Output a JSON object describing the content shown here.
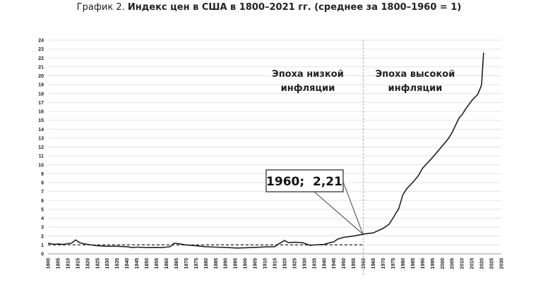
{
  "title": {
    "prefix": "График 2.",
    "main": "Индекс цен в США в 1800–2021 гг. (среднее за 1800–1960 = 1)"
  },
  "chart_data": {
    "type": "line",
    "title": "Индекс цен в США в 1800–2021 гг. (среднее за 1800–1960 = 1)",
    "xlim": [
      1800,
      2030
    ],
    "ylim": [
      0,
      24
    ],
    "x_ticks": [
      1800,
      1805,
      1810,
      1815,
      1820,
      1825,
      1830,
      1835,
      1840,
      1845,
      1850,
      1855,
      1860,
      1865,
      1870,
      1875,
      1880,
      1885,
      1890,
      1895,
      1900,
      1905,
      1910,
      1915,
      1920,
      1925,
      1930,
      1935,
      1940,
      1945,
      1950,
      1955,
      1960,
      1965,
      1970,
      1975,
      1980,
      1985,
      1990,
      1995,
      2000,
      2005,
      2010,
      2015,
      2020,
      2025,
      2030
    ],
    "y_ticks": [
      0,
      1,
      2,
      3,
      4,
      5,
      6,
      7,
      8,
      9,
      10,
      11,
      12,
      13,
      14,
      15,
      16,
      17,
      18,
      19,
      20,
      21,
      22,
      23,
      24
    ],
    "grid": "horizontal",
    "series": [
      {
        "color": "#222222",
        "x": [
          1800,
          1803,
          1805,
          1808,
          1810,
          1812,
          1814,
          1816,
          1818,
          1820,
          1825,
          1830,
          1835,
          1840,
          1843,
          1845,
          1850,
          1855,
          1858,
          1860,
          1862,
          1864,
          1866,
          1870,
          1875,
          1880,
          1885,
          1890,
          1896,
          1900,
          1905,
          1910,
          1915,
          1917,
          1920,
          1922,
          1925,
          1929,
          1933,
          1935,
          1940,
          1943,
          1945,
          1947,
          1950,
          1955,
          1960,
          1965,
          1970,
          1973,
          1975,
          1978,
          1980,
          1982,
          1985,
          1988,
          1990,
          1995,
          2000,
          2003,
          2005,
          2008,
          2009,
          2010,
          2012,
          2015,
          2018,
          2019,
          2020,
          2021
        ],
        "y": [
          1.2,
          1.05,
          1.1,
          1.05,
          1.15,
          1.2,
          1.55,
          1.25,
          1.15,
          1.05,
          0.9,
          0.85,
          0.85,
          0.8,
          0.7,
          0.75,
          0.7,
          0.72,
          0.7,
          0.75,
          0.8,
          1.2,
          1.15,
          1.0,
          0.9,
          0.8,
          0.75,
          0.72,
          0.65,
          0.68,
          0.72,
          0.78,
          0.8,
          1.1,
          1.5,
          1.25,
          1.3,
          1.25,
          0.95,
          1.0,
          1.05,
          1.25,
          1.35,
          1.65,
          1.85,
          2.0,
          2.21,
          2.35,
          2.85,
          3.3,
          4.0,
          5.1,
          6.6,
          7.3,
          8.0,
          8.8,
          9.6,
          10.8,
          12.1,
          12.9,
          13.6,
          15.0,
          15.4,
          15.6,
          16.3,
          17.2,
          17.9,
          18.4,
          19.0,
          22.6
        ]
      }
    ],
    "reference_line": {
      "y": 1,
      "x_range": [
        1800,
        1960
      ],
      "style": "dashed"
    },
    "vertical_marker": {
      "x": 1960,
      "style": "dashed"
    },
    "annotations": {
      "low": [
        "Эпоха низкой",
        "инфляции"
      ],
      "high": [
        "Эпоха высокой",
        "инфляции"
      ],
      "callout": "1960;  2,21"
    }
  }
}
